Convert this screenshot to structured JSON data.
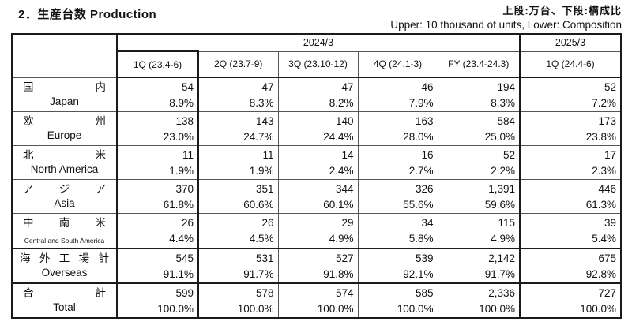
{
  "title": "2．生産台数 Production",
  "unit_note_jp": "上段:万台、下段:構成比",
  "unit_note_en": "Upper: 10 thousand of units,  Lower: Composition",
  "table": {
    "year_headers": [
      {
        "label": "2024/3",
        "span": 5
      },
      {
        "label": "2025/3",
        "span": 1
      }
    ],
    "quarter_headers": [
      "1Q (23.4-6)",
      "2Q (23.7-9)",
      "3Q (23.10-12)",
      "4Q (24.1-3)",
      "FY (23.4-24.3)",
      "1Q (24.4-6)"
    ],
    "rows": [
      {
        "key": "japan",
        "jp": "国内",
        "en": "Japan",
        "small_en": false,
        "is_subtotal": false,
        "units": [
          "54",
          "47",
          "47",
          "46",
          "194",
          "52"
        ],
        "ratios": [
          "8.9%",
          "8.3%",
          "8.2%",
          "7.9%",
          "8.3%",
          "7.2%"
        ]
      },
      {
        "key": "europe",
        "jp": "欧州",
        "en": "Europe",
        "small_en": false,
        "is_subtotal": false,
        "units": [
          "138",
          "143",
          "140",
          "163",
          "584",
          "173"
        ],
        "ratios": [
          "23.0%",
          "24.7%",
          "24.4%",
          "28.0%",
          "25.0%",
          "23.8%"
        ]
      },
      {
        "key": "north-america",
        "jp": "北米",
        "en": "North America",
        "small_en": false,
        "is_subtotal": false,
        "units": [
          "11",
          "11",
          "14",
          "16",
          "52",
          "17"
        ],
        "ratios": [
          "1.9%",
          "1.9%",
          "2.4%",
          "2.7%",
          "2.2%",
          "2.3%"
        ]
      },
      {
        "key": "asia",
        "jp": "アジア",
        "en": "Asia",
        "small_en": false,
        "is_subtotal": false,
        "units": [
          "370",
          "351",
          "344",
          "326",
          "1,391",
          "446"
        ],
        "ratios": [
          "61.8%",
          "60.6%",
          "60.1%",
          "55.6%",
          "59.6%",
          "61.3%"
        ]
      },
      {
        "key": "central-south-america",
        "jp": "中南米",
        "en": "Central and South America",
        "small_en": true,
        "is_subtotal": false,
        "units": [
          "26",
          "26",
          "29",
          "34",
          "115",
          "39"
        ],
        "ratios": [
          "4.4%",
          "4.5%",
          "4.9%",
          "5.8%",
          "4.9%",
          "5.4%"
        ]
      },
      {
        "key": "overseas",
        "jp": "海外工場計",
        "en": "Overseas",
        "small_en": false,
        "is_subtotal": true,
        "units": [
          "545",
          "531",
          "527",
          "539",
          "2,142",
          "675"
        ],
        "ratios": [
          "91.1%",
          "91.7%",
          "91.8%",
          "92.1%",
          "91.7%",
          "92.8%"
        ]
      },
      {
        "key": "total",
        "jp": "合計",
        "en": "Total",
        "small_en": false,
        "is_subtotal": true,
        "units": [
          "599",
          "578",
          "574",
          "585",
          "2,336",
          "727"
        ],
        "ratios": [
          "100.0%",
          "100.0%",
          "100.0%",
          "100.0%",
          "100.0%",
          "100.0%"
        ]
      }
    ]
  }
}
